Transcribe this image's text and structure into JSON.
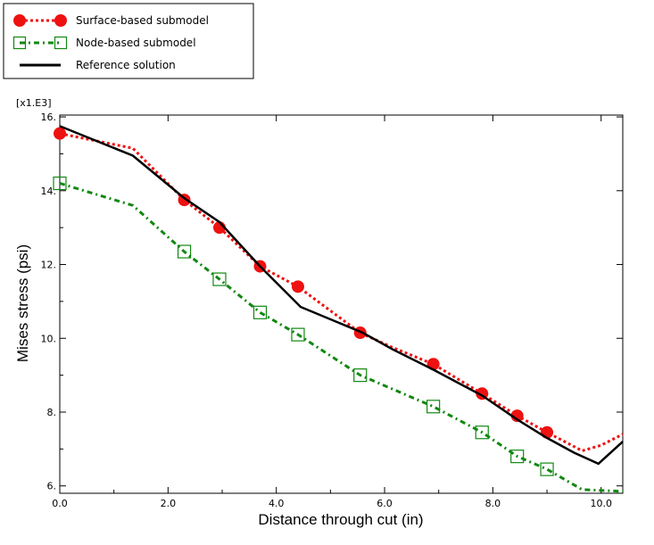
{
  "chart_data": {
    "type": "line",
    "xlabel": "Distance through cut (in)",
    "ylabel": "Mises stress (psi)",
    "y_multiplier_label": "[x1.E3]",
    "xlim": [
      0,
      10.4
    ],
    "ylim": [
      5.8,
      16.05
    ],
    "xticks": [
      0,
      2,
      4,
      6,
      8,
      10
    ],
    "xtick_labels": [
      "0.0",
      "2.0",
      "4.0",
      "6.0",
      "8.0",
      "10.0"
    ],
    "yticks": [
      6,
      8,
      10,
      12,
      14,
      16
    ],
    "ytick_labels": [
      "6.",
      "8.",
      "10.",
      "12.",
      "14.",
      "16."
    ],
    "legend_position": "top-left-outside",
    "series": [
      {
        "name": "Surface-based submodel",
        "color": "#ee1111",
        "style": "dotted",
        "marker": "filled-circle",
        "x": [
          0,
          1.35,
          2.3,
          2.95,
          3.7,
          4.4,
          5.55,
          6.15,
          6.9,
          7.8,
          8.45,
          9.0,
          9.65,
          10.0,
          10.4
        ],
        "y": [
          15.55,
          15.15,
          13.75,
          13.0,
          11.95,
          11.4,
          10.15,
          9.75,
          9.3,
          8.5,
          7.9,
          7.45,
          6.95,
          7.1,
          7.4
        ],
        "marker_points": [
          [
            0,
            15.55
          ],
          [
            2.3,
            13.75
          ],
          [
            2.95,
            13.0
          ],
          [
            3.7,
            11.95
          ],
          [
            4.4,
            11.4
          ],
          [
            5.55,
            10.15
          ],
          [
            6.9,
            9.3
          ],
          [
            7.8,
            8.5
          ],
          [
            8.45,
            7.9
          ],
          [
            9.0,
            7.45
          ]
        ]
      },
      {
        "name": "Node-based submodel",
        "color": "#118811",
        "style": "dash-dot",
        "marker": "open-square",
        "x": [
          0,
          1.35,
          2.3,
          2.95,
          3.7,
          4.4,
          5.55,
          6.9,
          7.8,
          8.45,
          9.0,
          9.65,
          10.4
        ],
        "y": [
          14.2,
          13.6,
          12.35,
          11.6,
          10.7,
          10.1,
          9.0,
          8.15,
          7.45,
          6.8,
          6.45,
          5.9,
          5.85
        ],
        "marker_points": [
          [
            0,
            14.2
          ],
          [
            2.3,
            12.35
          ],
          [
            2.95,
            11.6
          ],
          [
            3.7,
            10.7
          ],
          [
            4.4,
            10.1
          ],
          [
            5.55,
            9.0
          ],
          [
            6.9,
            8.15
          ],
          [
            7.8,
            7.45
          ],
          [
            8.45,
            6.8
          ],
          [
            9.0,
            6.45
          ]
        ]
      },
      {
        "name": "Reference solution",
        "color": "#000000",
        "style": "solid",
        "marker": "none",
        "x": [
          0,
          1.35,
          2.3,
          2.95,
          3.7,
          4.45,
          5.6,
          6.15,
          6.9,
          7.8,
          8.45,
          9.0,
          9.5,
          9.95,
          10.4
        ],
        "y": [
          15.75,
          14.95,
          13.8,
          13.15,
          11.95,
          10.85,
          10.15,
          9.7,
          9.15,
          8.45,
          7.8,
          7.3,
          6.9,
          6.6,
          7.2
        ]
      }
    ]
  }
}
